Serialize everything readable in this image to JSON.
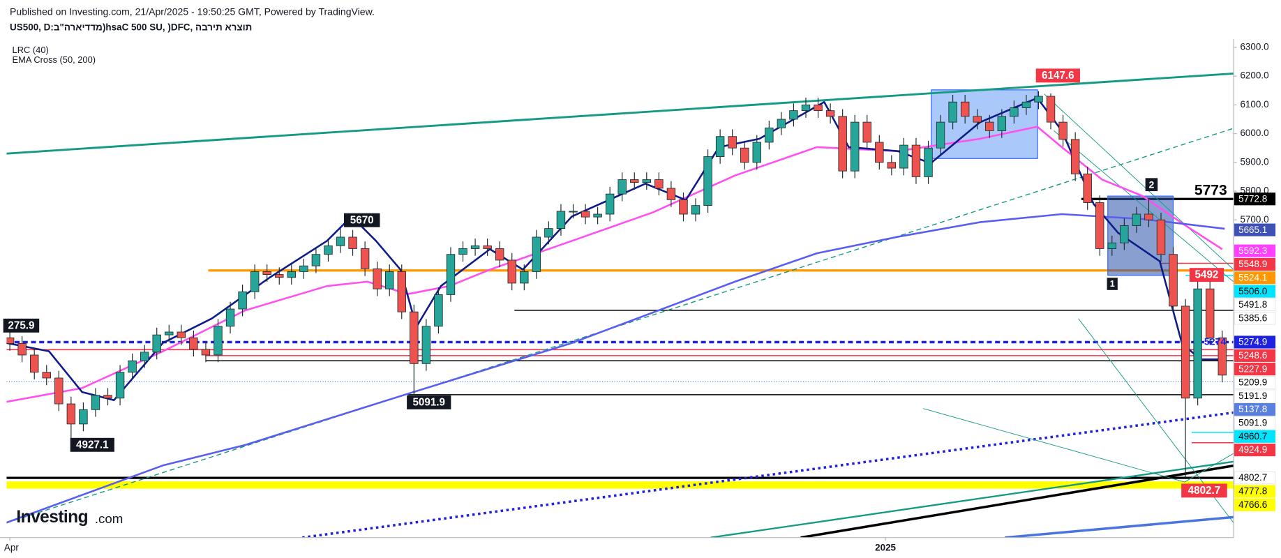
{
  "header": {
    "published": "Published on Investing.com, 21/Apr/2025 - 19:50:25 GMT, Powered by TradingView.",
    "title": "US500, D:מדדיארה\"ב)hsaC 500 SU, )DFC, תוצרא תירבה",
    "indicators": [
      "LRC (40)",
      "EMA Cross (50, 200)"
    ]
  },
  "logo": {
    "name": "Investing",
    "suffix": ".com"
  },
  "chart_data": {
    "type": "candlestick",
    "up_color": "#26a69a",
    "down_color": "#ef5350",
    "xlim": [
      -0.27,
      99.93
    ],
    "ylim": [
      4595,
      6328.4
    ],
    "xticks": [
      {
        "value": 0,
        "label": "Apr"
      },
      {
        "value": 71.5,
        "label": "2025"
      }
    ],
    "yticks": [
      {
        "value": 6300,
        "label": "6300.0"
      },
      {
        "value": 6200,
        "label": "6200.0"
      },
      {
        "value": 6100,
        "label": "6100.0"
      },
      {
        "value": 6000,
        "label": "6000.0"
      },
      {
        "value": 5900,
        "label": "5900.0"
      },
      {
        "value": 5800,
        "label": "5800.0"
      },
      {
        "value": 5700,
        "label": "5700.0"
      }
    ],
    "open": [
      5290,
      5270,
      5230,
      5170,
      5150,
      5060,
      4990,
      5040,
      5090,
      5080,
      5170,
      5210,
      5240,
      5300,
      5310,
      5290,
      5250,
      5230,
      5330,
      5390,
      5450,
      5520,
      5510,
      5500,
      5520,
      5540,
      5580,
      5610,
      5640,
      5600,
      5530,
      5460,
      5520,
      5380,
      5200,
      5330,
      5440,
      5580,
      5600,
      5610,
      5600,
      5560,
      5480,
      5520,
      5640,
      5670,
      5730,
      5730,
      5710,
      5720,
      5790,
      5840,
      5830,
      5840,
      5810,
      5770,
      5720,
      5750,
      5920,
      5990,
      5950,
      5900,
      5970,
      6020,
      6050,
      6080,
      6100,
      6080,
      6060,
      5870,
      6040,
      5970,
      5900,
      5880,
      5960,
      5850,
      5950,
      6040,
      6110,
      6060,
      6040,
      6010,
      6060,
      6090,
      6110,
      6130,
      6040,
      5980,
      5860,
      5760,
      5600,
      5620,
      5680,
      5720,
      5700,
      5580,
      5400,
      5080,
      5460,
      5290
    ],
    "high": [
      5315,
      5295,
      5255,
      5195,
      5175,
      5085,
      5065,
      5115,
      5115,
      5195,
      5235,
      5265,
      5325,
      5335,
      5335,
      5315,
      5275,
      5355,
      5415,
      5475,
      5545,
      5545,
      5535,
      5545,
      5565,
      5605,
      5635,
      5670,
      5665,
      5625,
      5555,
      5545,
      5545,
      5405,
      5355,
      5465,
      5605,
      5625,
      5635,
      5635,
      5625,
      5585,
      5545,
      5665,
      5695,
      5755,
      5755,
      5755,
      5745,
      5815,
      5865,
      5865,
      5865,
      5865,
      5835,
      5795,
      5775,
      5945,
      6015,
      6015,
      5975,
      5995,
      6045,
      6075,
      6105,
      6125,
      6125,
      6105,
      6085,
      6065,
      6065,
      5995,
      5925,
      5985,
      5985,
      5975,
      6065,
      6135,
      6135,
      6085,
      6065,
      6085,
      6115,
      6135,
      6147.6,
      6140,
      6065,
      6005,
      5885,
      5785,
      5645,
      5705,
      5745,
      5772.8,
      5725,
      5605,
      5425,
      5492,
      5485,
      5315
    ],
    "low": [
      5245,
      5205,
      5145,
      5125,
      5035,
      4927.1,
      4965,
      5015,
      5055,
      5055,
      5145,
      5185,
      5215,
      5275,
      5265,
      5225,
      5205,
      5205,
      5305,
      5365,
      5425,
      5485,
      5475,
      5475,
      5495,
      5515,
      5555,
      5585,
      5575,
      5505,
      5435,
      5435,
      5355,
      5091.9,
      5175,
      5305,
      5415,
      5555,
      5575,
      5575,
      5535,
      5455,
      5455,
      5495,
      5615,
      5645,
      5705,
      5685,
      5685,
      5695,
      5765,
      5805,
      5805,
      5785,
      5745,
      5695,
      5695,
      5725,
      5895,
      5925,
      5875,
      5875,
      5945,
      5995,
      6025,
      6055,
      6055,
      6035,
      5845,
      5845,
      5945,
      5875,
      5855,
      5855,
      5825,
      5825,
      5925,
      6015,
      6035,
      6015,
      5985,
      5985,
      6035,
      6065,
      6085,
      6015,
      5955,
      5835,
      5735,
      5575,
      5575,
      5595,
      5655,
      5675,
      5555,
      5375,
      4802.7,
      5055,
      5265,
      5135
    ],
    "close": [
      5270,
      5230,
      5170,
      5150,
      5060,
      4990,
      5040,
      5090,
      5080,
      5170,
      5210,
      5240,
      5300,
      5310,
      5290,
      5250,
      5230,
      5330,
      5390,
      5450,
      5520,
      5510,
      5500,
      5520,
      5540,
      5580,
      5610,
      5640,
      5600,
      5530,
      5460,
      5520,
      5380,
      5200,
      5330,
      5440,
      5580,
      5600,
      5610,
      5600,
      5560,
      5480,
      5520,
      5640,
      5670,
      5730,
      5730,
      5710,
      5720,
      5790,
      5840,
      5830,
      5840,
      5810,
      5770,
      5720,
      5750,
      5920,
      5990,
      5950,
      5900,
      5970,
      6020,
      6050,
      6080,
      6100,
      6080,
      6060,
      5870,
      6040,
      5970,
      5900,
      5880,
      5960,
      5850,
      5950,
      6040,
      6110,
      6060,
      6040,
      6010,
      6060,
      6090,
      6110,
      6130,
      6040,
      5980,
      5860,
      5760,
      5600,
      5620,
      5680,
      5720,
      5700,
      5580,
      5400,
      5080,
      5460,
      5290,
      5160
    ],
    "lines": [
      {
        "color": "#ff4ff0",
        "x": [
          -0.27,
          5.9,
          12.5,
          19.2,
          25.9,
          29.2,
          32.5,
          35.9,
          39.2,
          45.9,
          52.5,
          59.2,
          65.9,
          72.5,
          79.2,
          83.9,
          85.9,
          89.2,
          92.5,
          95.9,
          99
        ],
        "values": [
          5067,
          5115,
          5243,
          5385,
          5470,
          5485,
          5442,
          5470,
          5527,
          5627,
          5726,
          5854,
          5953,
          5939,
          5982,
          6024,
          5953,
          5840,
          5783,
          5683,
          5598
        ]
      },
      {
        "color": "#5a5ef0",
        "x": [
          -0.27,
          12.5,
          19.2,
          32.5,
          45.9,
          59.2,
          65.9,
          72.5,
          79.2,
          85.9,
          92.5,
          99.2
        ],
        "values": [
          4647,
          4846,
          4917,
          5095,
          5272,
          5485,
          5584,
          5641,
          5692,
          5720,
          5703,
          5669
        ]
      },
      {
        "color": "#0d1c8a",
        "x": [
          -0.27,
          3.2,
          5.9,
          8.5,
          12.5,
          16.5,
          21.2,
          25.9,
          27.9,
          29.9,
          31.9,
          33.2,
          35.2,
          39.2,
          41.9,
          45.9,
          51.9,
          55.2,
          57.9,
          61.2,
          66.5,
          68.5,
          72.5,
          75.2,
          79.2,
          83.9,
          85.9,
          88.5,
          90.5,
          93.9,
          95.7,
          97.2,
          99
        ],
        "values": [
          5272,
          5243,
          5101,
          5073,
          5272,
          5357,
          5499,
          5627,
          5712,
          5627,
          5527,
          5328,
          5470,
          5598,
          5527,
          5712,
          5826,
          5769,
          5953,
          5982,
          6110,
          5953,
          5939,
          5897,
          6039,
          6124,
          6010,
          5755,
          5655,
          5556,
          5272,
          5215,
          5215
        ]
      }
    ],
    "levels": [
      {
        "value": 5772.8,
        "color": "#000000",
        "from": 87.5,
        "style": "heavy"
      },
      {
        "value": 5548.9,
        "color": "#f23645",
        "from": 94,
        "style": "solid"
      },
      {
        "value": 5524.1,
        "color": "#ff9800",
        "from": 16.2,
        "style": "heavy"
      },
      {
        "value": 5506,
        "color": "#00e5ff",
        "from": 96,
        "style": "solid"
      },
      {
        "value": 5385.6,
        "color": "#000000",
        "from": 41.2,
        "style": "solid"
      },
      {
        "value": 5274.9,
        "color": "#1e22e0",
        "from": -0.27,
        "style": "dashed"
      },
      {
        "value": 5248.6,
        "color": "#f23645",
        "from": -0.27,
        "style": "solid"
      },
      {
        "value": 5227.9,
        "color": "#f23645",
        "from": 16,
        "style": "solid"
      },
      {
        "value": 5209.9,
        "color": "#000000",
        "from": 16,
        "style": "solid"
      },
      {
        "value": 5137.8,
        "color": "#5b7fe0",
        "from": -0.27,
        "style": "dotted"
      },
      {
        "value": 5091.9,
        "color": "#000000",
        "from": 32.5,
        "style": "solid"
      },
      {
        "value": 4960.7,
        "color": "#00e5ff",
        "from": 96.5,
        "style": "solid"
      },
      {
        "value": 4924.9,
        "color": "#f23645",
        "from": 96.5,
        "style": "solid"
      },
      {
        "value": 4802.7,
        "color": "#000000",
        "from": -0.27,
        "style": "heavy"
      },
      {
        "value": 4777.8,
        "color": "#ffff00",
        "from": -0.27,
        "style": "band"
      }
    ],
    "price_tags": [
      {
        "value": 5772.8,
        "bg": "#000000",
        "fg": "#ffffff"
      },
      {
        "value": 5665.1,
        "bg": "#3f51b5",
        "fg": "#ffffff"
      },
      {
        "value": 5592.3,
        "bg": "#ff40ff",
        "fg": "#ffffff"
      },
      {
        "value": 5548.9,
        "bg": "#f23645",
        "fg": "#ffffff"
      },
      {
        "value": 5524.1,
        "bg": "#ff9800",
        "fg": "#ffffff"
      },
      {
        "value": 5506,
        "label": "5506.0",
        "bg": "#00e5ff",
        "fg": "#000000"
      },
      {
        "value": 5491.8,
        "bg": "#ffffff",
        "fg": "#000000"
      },
      {
        "value": 5385.6,
        "bg": "#ffffff",
        "fg": "#000000"
      },
      {
        "value": 5274.9,
        "bg": "#1e22e0",
        "fg": "#ffffff"
      },
      {
        "value": 5248.6,
        "bg": "#f23645",
        "fg": "#ffffff"
      },
      {
        "value": 5227.9,
        "bg": "#f23645",
        "fg": "#ffffff"
      },
      {
        "value": 5209.9,
        "bg": "#ffffff",
        "fg": "#000000"
      },
      {
        "value": 5191.9,
        "bg": "#ffffff",
        "fg": "#000000"
      },
      {
        "value": 5137.8,
        "bg": "#5b7fe0",
        "fg": "#ffffff"
      },
      {
        "value": 5091.9,
        "bg": "#ffffff",
        "fg": "#000000"
      },
      {
        "value": 4960.7,
        "bg": "#00e5ff",
        "fg": "#000000"
      },
      {
        "value": 4924.9,
        "bg": "#f23645",
        "fg": "#ffffff"
      },
      {
        "value": 4802.7,
        "bg": "#ffffff",
        "fg": "#000000"
      },
      {
        "value": 4777.8,
        "bg": "#ffff00",
        "fg": "#000000"
      },
      {
        "value": 4766.6,
        "bg": "#ffff00",
        "fg": "#000000"
      }
    ],
    "annotations": [
      "6147.6",
      "5670",
      "5091.9",
      "4927.1",
      "275.9",
      "5773",
      "2",
      "1",
      "5492",
      "4802.7",
      "5274"
    ]
  }
}
